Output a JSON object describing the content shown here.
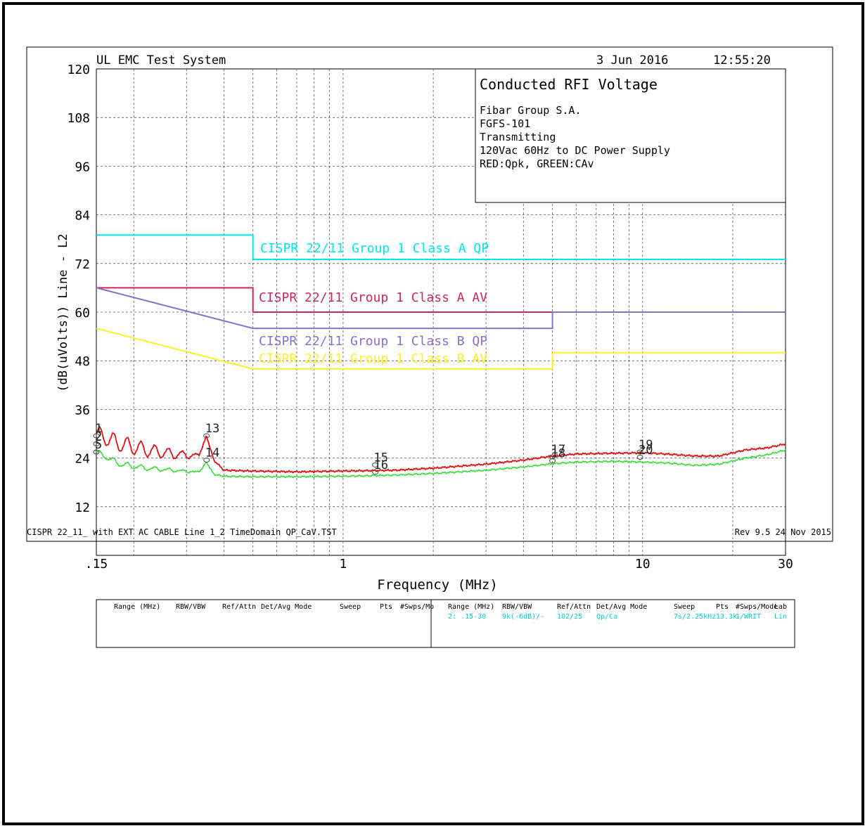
{
  "header": {
    "system": "UL EMC Test System",
    "date": "3 Jun 2016",
    "time": "12:55:20"
  },
  "info_box": {
    "title": "Conducted RFI Voltage",
    "lines": [
      "Fibar Group S.A.",
      "FGFS-101",
      "Transmitting",
      "120Vac 60Hz to DC Power Supply",
      "RED:Qpk, GREEN:CAv"
    ]
  },
  "footer": {
    "file": "CISPR 22_11_ with EXT AC CABLE Line 1_2 TimeDomain QP_CaV.TST",
    "rev": "Rev 9.5 24 Nov 2015"
  },
  "settings_table": {
    "left_headers": [
      "Range (MHz)",
      "RBW/VBW",
      "Ref/Attn",
      "Det/Avg Mode",
      "Sweep",
      "Pts",
      "#Swps/Mo"
    ],
    "right_headers": [
      "Range (MHz)",
      "RBW/VBW",
      "Ref/Attn",
      "Det/Avg Mode",
      "Sweep",
      "Pts",
      "#Swps/Mode",
      "Lab"
    ],
    "right_values": [
      "2: .15-30",
      "9k(-6dB)/-",
      "102/25",
      "Qp/Ca",
      "7s/2.25kHz",
      "13.3k",
      "1/WRIT",
      "Lin"
    ]
  },
  "colors": {
    "classA_qp": "#00e5ee",
    "classA_av": "#c8285a",
    "classB_qp": "#8a70c8",
    "classB_av": "#ffee22",
    "qpk_trace": "#e01010",
    "cav_trace": "#22dd22",
    "value_cyan": "#00cccc"
  },
  "chart_data": {
    "type": "line",
    "title": "",
    "xlabel": "Frequency (MHz)",
    "ylabel": "(dB(uVolts)) Line - L2",
    "x_scale": "log",
    "xlim": [
      0.15,
      30
    ],
    "ylim": [
      0,
      120
    ],
    "x_ticks": [
      {
        "value": 0.15,
        "label": ".15"
      },
      {
        "value": 1,
        "label": "1"
      },
      {
        "value": 10,
        "label": "10"
      },
      {
        "value": 30,
        "label": "30"
      }
    ],
    "y_ticks": [
      12,
      24,
      36,
      48,
      60,
      72,
      84,
      96,
      108,
      120
    ],
    "grid": true,
    "limit_lines": [
      {
        "name": "CISPR 22/11 Group 1 Class A QP",
        "color_key": "classA_qp",
        "x": [
          0.15,
          0.5,
          0.5,
          30
        ],
        "y": [
          79,
          79,
          73,
          73
        ]
      },
      {
        "name": "CISPR 22/11 Group 1 Class A AV",
        "color_key": "classA_av",
        "x": [
          0.15,
          0.5,
          0.5,
          30
        ],
        "y": [
          66,
          66,
          60,
          60
        ]
      },
      {
        "name": "CISPR 22/11 Group 1 Class B QP",
        "color_key": "classB_qp",
        "x": [
          0.15,
          0.5,
          5,
          5,
          30
        ],
        "y": [
          66,
          56,
          56,
          60,
          60
        ]
      },
      {
        "name": "CISPR 22/11 Group 1 Class B AV",
        "color_key": "classB_av",
        "x": [
          0.15,
          0.5,
          5,
          5,
          30
        ],
        "y": [
          56,
          46,
          46,
          50,
          50
        ]
      }
    ],
    "series": [
      {
        "name": "Qpk",
        "color_key": "qpk_trace",
        "x": [
          0.15,
          0.18,
          0.22,
          0.27,
          0.33,
          0.35,
          0.37,
          0.4,
          0.5,
          0.7,
          1,
          1.5,
          2,
          3,
          4,
          5,
          6,
          8,
          10,
          12,
          15,
          18,
          22,
          26,
          30
        ],
        "y": [
          30,
          27.5,
          26,
          25,
          24.5,
          29.5,
          23.5,
          21,
          20.8,
          20.6,
          20.8,
          21,
          21.5,
          22.5,
          23.5,
          24.5,
          25,
          25.2,
          25.3,
          25,
          24.5,
          24.5,
          26,
          26.5,
          27.5
        ]
      },
      {
        "name": "CAv",
        "color_key": "cav_trace",
        "x": [
          0.15,
          0.18,
          0.22,
          0.27,
          0.33,
          0.35,
          0.37,
          0.4,
          0.5,
          0.7,
          1,
          1.5,
          2,
          3,
          4,
          5,
          6,
          8,
          10,
          12,
          15,
          18,
          22,
          26,
          30
        ],
        "y": [
          25.5,
          22.5,
          21.5,
          21,
          20.5,
          23,
          20,
          19.5,
          19.4,
          19.4,
          19.5,
          19.8,
          20.2,
          21,
          21.8,
          22.6,
          23,
          23.2,
          23,
          22.8,
          22.2,
          22.5,
          24,
          24.8,
          26
        ]
      }
    ],
    "markers": [
      {
        "label": "1",
        "x": 0.15,
        "y": 29.5
      },
      {
        "label": "2",
        "x": 0.15,
        "y": 27.5
      },
      {
        "label": "5",
        "x": 0.15,
        "y": 25.5
      },
      {
        "label": "13",
        "x": 0.35,
        "y": 29.5
      },
      {
        "label": "14",
        "x": 0.35,
        "y": 23.5
      },
      {
        "label": "15",
        "x": 1.28,
        "y": 22.3
      },
      {
        "label": "16",
        "x": 1.28,
        "y": 20.5
      },
      {
        "label": "17",
        "x": 5.0,
        "y": 24.3
      },
      {
        "label": "18",
        "x": 5.0,
        "y": 23.3
      },
      {
        "label": "19",
        "x": 9.8,
        "y": 25.5
      },
      {
        "label": "20",
        "x": 9.8,
        "y": 24.2
      }
    ]
  }
}
